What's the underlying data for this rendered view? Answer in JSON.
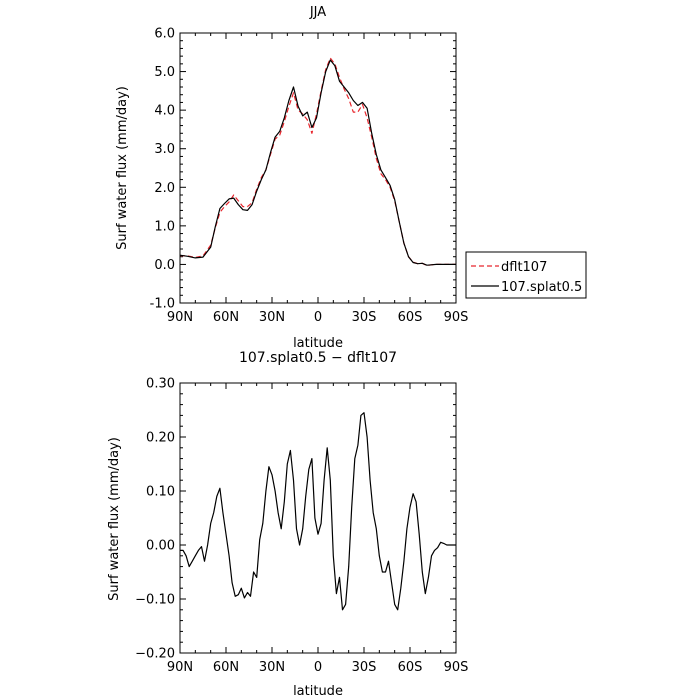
{
  "chart_data": [
    {
      "type": "line",
      "title": "JJA",
      "xlabel": "latitude",
      "ylabel": "Surf water flux (mm/day)",
      "xlim": [
        90,
        -90
      ],
      "ylim": [
        -1.0,
        6.0
      ],
      "x_ticks": [
        90,
        60,
        30,
        0,
        -30,
        -60,
        -90
      ],
      "x_tick_labels": [
        "90N",
        "60N",
        "30N",
        "0",
        "30S",
        "60S",
        "90S"
      ],
      "y_ticks": [
        -1.0,
        0.0,
        1.0,
        2.0,
        3.0,
        4.0,
        5.0,
        6.0
      ],
      "y_tick_labels": [
        "-1.0",
        "0.0",
        "1.0",
        "2.0",
        "3.0",
        "4.0",
        "5.0",
        "6.0"
      ],
      "grid": false,
      "legend": "right-outside",
      "series": [
        {
          "name": "dflt107",
          "color": "#e8262d",
          "dash": "dashed",
          "x": [
            90,
            85,
            80,
            75,
            70,
            67,
            64,
            61,
            58,
            55,
            52,
            49,
            46,
            43,
            40,
            37,
            34,
            31,
            28,
            25,
            22,
            19,
            16,
            13,
            10,
            7,
            4,
            1,
            -2,
            -5,
            -8,
            -11,
            -14,
            -17,
            -20,
            -23,
            -26,
            -29,
            -32,
            -35,
            -38,
            -41,
            -44,
            -47,
            -50,
            -53,
            -56,
            -59,
            -62,
            -65,
            -68,
            -71,
            -74,
            -77,
            -80,
            -85,
            -90
          ],
          "y": [
            0.23,
            0.22,
            0.18,
            0.22,
            0.5,
            0.95,
            1.35,
            1.5,
            1.62,
            1.8,
            1.65,
            1.5,
            1.5,
            1.6,
            1.95,
            2.25,
            2.45,
            2.85,
            3.25,
            3.35,
            3.7,
            4.1,
            4.45,
            4.0,
            3.9,
            3.75,
            3.4,
            3.9,
            4.5,
            5.05,
            5.35,
            5.2,
            4.85,
            4.55,
            4.3,
            3.95,
            3.95,
            4.15,
            3.8,
            3.3,
            2.75,
            2.35,
            2.2,
            2.0,
            1.65,
            1.1,
            0.55,
            0.2,
            0.06,
            0.02,
            0.03,
            -0.03,
            -0.01,
            0.0,
            0.0,
            0.0,
            0.0
          ]
        },
        {
          "name": "107.splat0.5",
          "color": "#000000",
          "dash": "solid",
          "x": [
            90,
            85,
            80,
            75,
            70,
            67,
            64,
            61,
            58,
            55,
            52,
            49,
            46,
            43,
            40,
            37,
            34,
            31,
            28,
            25,
            22,
            19,
            16,
            13,
            10,
            7,
            4,
            1,
            -2,
            -5,
            -8,
            -11,
            -14,
            -17,
            -20,
            -23,
            -26,
            -29,
            -32,
            -35,
            -38,
            -41,
            -44,
            -47,
            -50,
            -53,
            -56,
            -59,
            -62,
            -65,
            -68,
            -71,
            -74,
            -77,
            -80,
            -85,
            -90
          ],
          "y": [
            0.24,
            0.21,
            0.17,
            0.19,
            0.45,
            0.98,
            1.45,
            1.58,
            1.7,
            1.72,
            1.55,
            1.42,
            1.4,
            1.55,
            1.9,
            2.2,
            2.45,
            2.9,
            3.3,
            3.45,
            3.8,
            4.25,
            4.6,
            4.1,
            3.85,
            3.95,
            3.55,
            3.8,
            4.45,
            5.0,
            5.3,
            5.15,
            4.75,
            4.6,
            4.45,
            4.25,
            4.12,
            4.2,
            4.05,
            3.4,
            2.85,
            2.45,
            2.25,
            2.05,
            1.68,
            1.1,
            0.55,
            0.2,
            0.05,
            0.02,
            0.03,
            -0.02,
            -0.01,
            0.0,
            0.0,
            0.0,
            0.0
          ]
        }
      ]
    },
    {
      "type": "line",
      "title": "107.splat0.5 − dflt107",
      "xlabel": "latitude",
      "ylabel": "Surf water flux (mm/day)",
      "xlim": [
        90,
        -90
      ],
      "ylim": [
        -0.2,
        0.3
      ],
      "x_ticks": [
        90,
        60,
        30,
        0,
        -30,
        -60,
        -90
      ],
      "x_tick_labels": [
        "90N",
        "60N",
        "30N",
        "0",
        "30S",
        "60S",
        "90S"
      ],
      "y_ticks": [
        -0.2,
        -0.1,
        0.0,
        0.1,
        0.2,
        0.3
      ],
      "y_tick_labels": [
        "−0.20",
        "−0.10",
        "0.00",
        "0.10",
        "0.20",
        "0.30"
      ],
      "grid": false,
      "series": [
        {
          "color": "#000000",
          "dash": "solid",
          "x": [
            90,
            88,
            86,
            84,
            82,
            80,
            78,
            76,
            74,
            72,
            70,
            68,
            66,
            64,
            62,
            60,
            58,
            56,
            54,
            52,
            50,
            48,
            46,
            44,
            42,
            40,
            38,
            36,
            34,
            32,
            30,
            28,
            26,
            24,
            22,
            20,
            18,
            16,
            14,
            12,
            10,
            8,
            6,
            4,
            2,
            0,
            -2,
            -4,
            -6,
            -8,
            -10,
            -12,
            -14,
            -16,
            -18,
            -20,
            -22,
            -24,
            -26,
            -28,
            -30,
            -32,
            -34,
            -36,
            -38,
            -40,
            -42,
            -44,
            -46,
            -48,
            -50,
            -52,
            -54,
            -56,
            -58,
            -60,
            -62,
            -64,
            -66,
            -68,
            -70,
            -72,
            -74,
            -76,
            -78,
            -80,
            -82,
            -84,
            -86,
            -88,
            -90
          ],
          "y": [
            -0.01,
            -0.01,
            -0.02,
            -0.04,
            -0.03,
            -0.02,
            -0.01,
            -0.003,
            -0.03,
            0.0,
            0.04,
            0.06,
            0.09,
            0.105,
            0.06,
            0.02,
            -0.02,
            -0.07,
            -0.095,
            -0.092,
            -0.08,
            -0.098,
            -0.088,
            -0.095,
            -0.05,
            -0.06,
            0.01,
            0.04,
            0.1,
            0.145,
            0.13,
            0.1,
            0.06,
            0.03,
            0.08,
            0.15,
            0.175,
            0.12,
            0.03,
            0.0,
            0.03,
            0.09,
            0.14,
            0.16,
            0.05,
            0.02,
            0.04,
            0.12,
            0.18,
            0.12,
            -0.02,
            -0.09,
            -0.06,
            -0.12,
            -0.11,
            -0.04,
            0.07,
            0.16,
            0.185,
            0.24,
            0.245,
            0.2,
            0.12,
            0.06,
            0.03,
            -0.02,
            -0.05,
            -0.05,
            -0.03,
            -0.07,
            -0.11,
            -0.12,
            -0.08,
            -0.03,
            0.03,
            0.07,
            0.095,
            0.08,
            0.02,
            -0.05,
            -0.09,
            -0.06,
            -0.02,
            -0.01,
            -0.005,
            0.005,
            0.003,
            0.0,
            0.0,
            0.0,
            0.0
          ]
        }
      ]
    }
  ]
}
